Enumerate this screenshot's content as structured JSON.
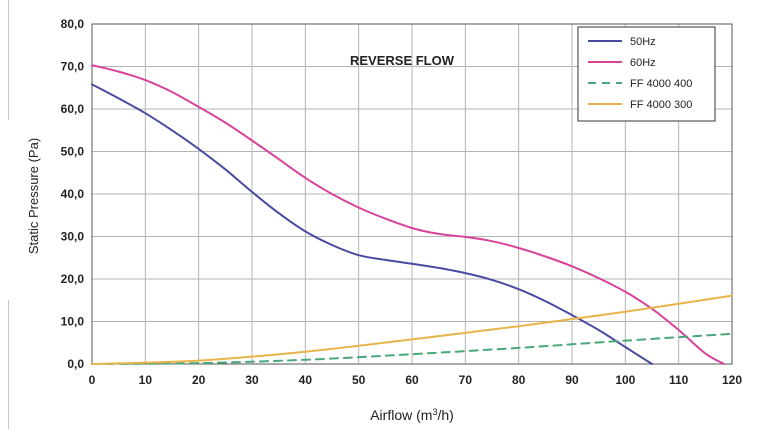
{
  "chart_data": {
    "type": "line",
    "title": "REVERSE FLOW",
    "xlabel_main": "Airflow (m",
    "xlabel_sup": "3",
    "xlabel_end": "/h)",
    "ylabel": "Static Pressure (Pa)",
    "xlim": [
      0,
      120
    ],
    "ylim": [
      0,
      80
    ],
    "x_ticks": [
      0,
      10,
      20,
      30,
      40,
      50,
      60,
      70,
      80,
      90,
      100,
      110,
      120
    ],
    "x_tick_labels": [
      "0",
      "10",
      "20",
      "30",
      "40",
      "50",
      "60",
      "70",
      "80",
      "90",
      "100",
      "110",
      "120"
    ],
    "y_ticks": [
      0,
      10,
      20,
      30,
      40,
      50,
      60,
      70,
      80
    ],
    "y_tick_labels": [
      "0,0",
      "10,0",
      "20,0",
      "30,0",
      "40,0",
      "50,0",
      "60,0",
      "70,0",
      "80,0"
    ],
    "grid": true,
    "legend_position": "top-right",
    "series": [
      {
        "name": "50Hz",
        "color": "#4a4aa0",
        "dash": "solid",
        "points": [
          [
            0,
            65.8
          ],
          [
            5,
            62.5
          ],
          [
            10,
            59.0
          ],
          [
            15,
            55.0
          ],
          [
            20,
            50.6
          ],
          [
            25,
            45.8
          ],
          [
            30,
            40.5
          ],
          [
            35,
            35.5
          ],
          [
            40,
            31.2
          ],
          [
            45,
            28.0
          ],
          [
            50,
            25.6
          ],
          [
            55,
            24.5
          ],
          [
            60,
            23.6
          ],
          [
            65,
            22.6
          ],
          [
            70,
            21.4
          ],
          [
            75,
            19.8
          ],
          [
            80,
            17.6
          ],
          [
            85,
            14.8
          ],
          [
            90,
            11.5
          ],
          [
            95,
            8.0
          ],
          [
            100,
            4.0
          ],
          [
            105,
            0.0
          ]
        ]
      },
      {
        "name": "60Hz",
        "color": "#d8439a",
        "dash": "solid",
        "points": [
          [
            0,
            70.3
          ],
          [
            5,
            68.8
          ],
          [
            10,
            66.8
          ],
          [
            15,
            64.0
          ],
          [
            20,
            60.5
          ],
          [
            25,
            56.8
          ],
          [
            30,
            52.6
          ],
          [
            35,
            48.2
          ],
          [
            40,
            43.8
          ],
          [
            45,
            40.0
          ],
          [
            50,
            36.8
          ],
          [
            55,
            34.2
          ],
          [
            60,
            32.0
          ],
          [
            65,
            30.6
          ],
          [
            70,
            29.9
          ],
          [
            75,
            28.9
          ],
          [
            80,
            27.3
          ],
          [
            85,
            25.3
          ],
          [
            90,
            23.0
          ],
          [
            95,
            20.2
          ],
          [
            100,
            17.0
          ],
          [
            105,
            13.0
          ],
          [
            110,
            8.0
          ],
          [
            115,
            2.5
          ],
          [
            118.5,
            0.0
          ]
        ]
      },
      {
        "name": "FF 4000 400",
        "color": "#4aa878",
        "dash": "dashed",
        "points": [
          [
            0,
            0.0
          ],
          [
            20,
            0.2
          ],
          [
            40,
            1.0
          ],
          [
            60,
            2.3
          ],
          [
            80,
            3.8
          ],
          [
            100,
            5.5
          ],
          [
            120,
            7.1
          ]
        ]
      },
      {
        "name": "FF 4000 300",
        "color": "#e8b44a",
        "dash": "solid",
        "points": [
          [
            0,
            0.0
          ],
          [
            20,
            0.8
          ],
          [
            40,
            2.9
          ],
          [
            60,
            5.8
          ],
          [
            80,
            8.9
          ],
          [
            100,
            12.3
          ],
          [
            120,
            16.1
          ]
        ]
      }
    ]
  }
}
